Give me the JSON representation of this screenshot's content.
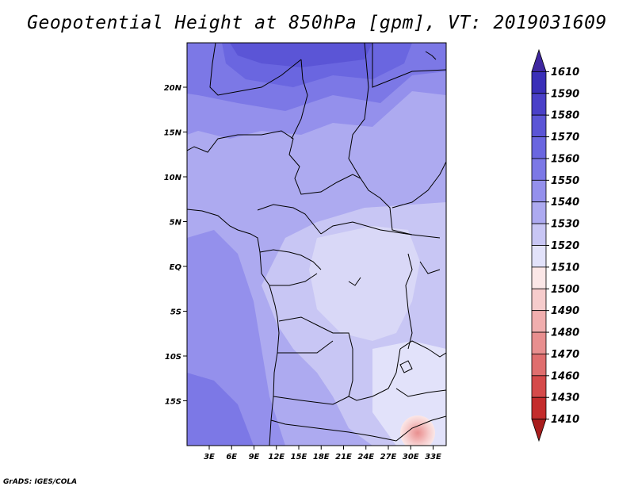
{
  "title": "Geopotential Height at 850hPa [gpm], VT: 2019031609",
  "credit": "GrADS: IGES/COLA",
  "map": {
    "lat_labels": [
      "20N",
      "15N",
      "10N",
      "5N",
      "EQ",
      "5S",
      "10S",
      "15S"
    ],
    "lon_labels": [
      "3E",
      "6E",
      "9E",
      "12E",
      "15E",
      "18E",
      "21E",
      "24E",
      "27E",
      "30E",
      "33E"
    ]
  },
  "colorbar": {
    "levels": [
      "1610",
      "1590",
      "1580",
      "1570",
      "1560",
      "1550",
      "1540",
      "1530",
      "1520",
      "1510",
      "1500",
      "1490",
      "1480",
      "1470",
      "1460",
      "1430",
      "1410"
    ],
    "colors_top_to_bottom": [
      "#3f27a0",
      "#3a2fb8",
      "#4a40c8",
      "#5b55d6",
      "#6a66e0",
      "#7c78e6",
      "#9490ec",
      "#adaaf0",
      "#c8c6f4",
      "#e2e2fa",
      "#fbe7e7",
      "#f6cccc",
      "#f0aeae",
      "#e88f8f",
      "#df6e6e",
      "#d54a4a",
      "#c42c2c",
      "#a81d1d"
    ]
  }
}
